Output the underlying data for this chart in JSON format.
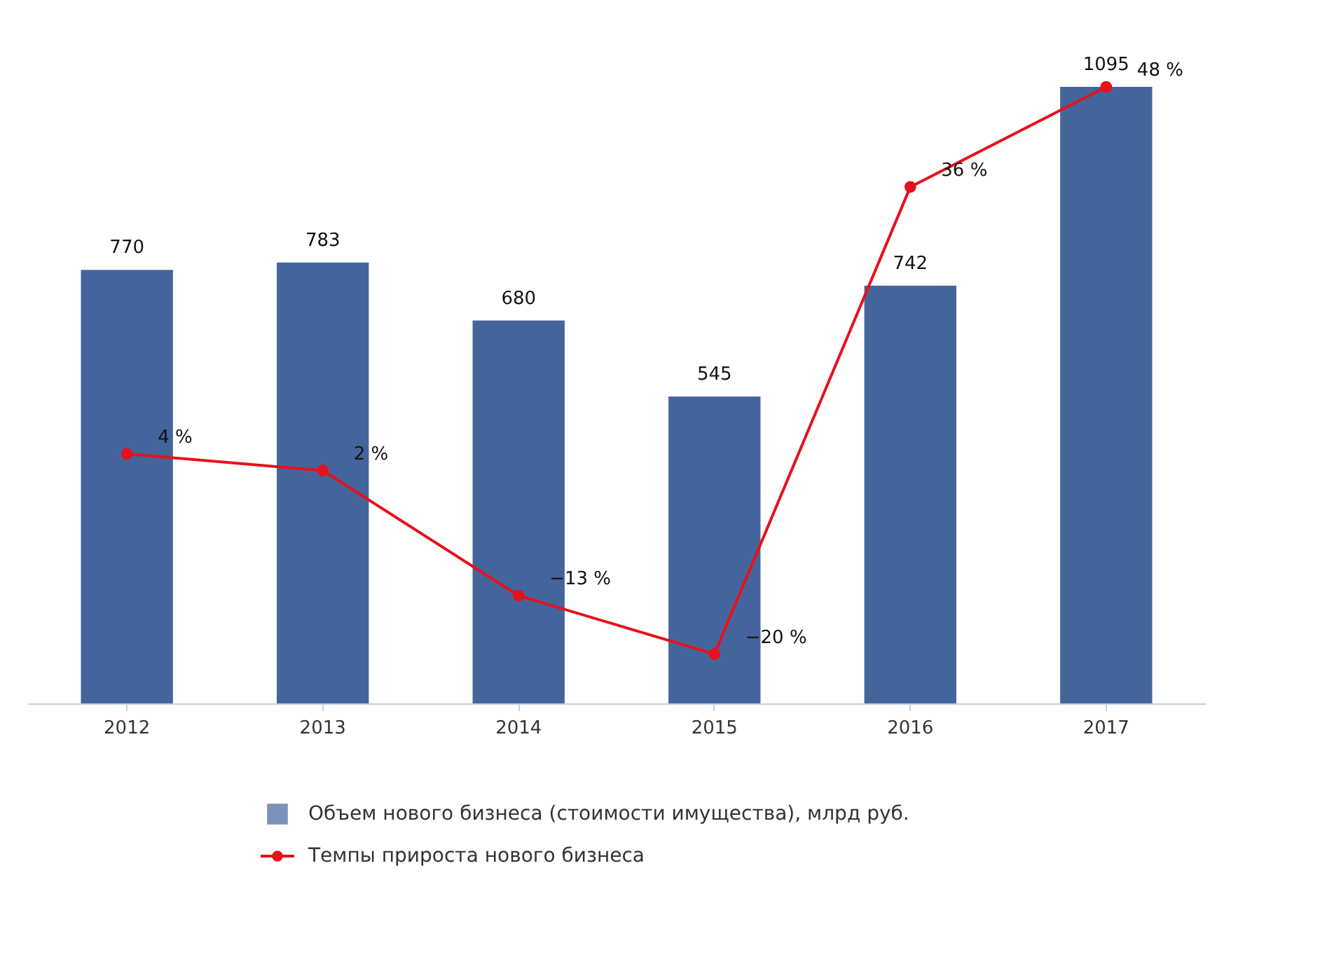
{
  "chart_data": {
    "type": "bar",
    "categories": [
      "2012",
      "2013",
      "2014",
      "2015",
      "2016",
      "2017"
    ],
    "series": [
      {
        "name": "Объем нового бизнеса (стоимости имущества), млрд руб.",
        "color": "#44659b",
        "values": [
          770,
          783,
          680,
          545,
          742,
          1095
        ]
      },
      {
        "name": "Темпы прироста нового бизнеса",
        "type": "line",
        "axis": "y2",
        "color": "#e8101c",
        "values": [
          4,
          2,
          -13,
          -20,
          36,
          48
        ],
        "value_labels": [
          "4 %",
          "2 %",
          "−13 %",
          "−20 %",
          "36 %",
          "48 %"
        ]
      }
    ],
    "data_labels": true,
    "legend": "bottom",
    "marker": "circle",
    "tick_labels": "x"
  }
}
